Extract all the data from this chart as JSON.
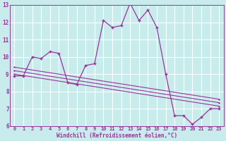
{
  "title": "",
  "xlabel": "Windchill (Refroidissement éolien,°C)",
  "bg_color": "#c8ecec",
  "line_color": "#993399",
  "grid_color": "#b0d8d8",
  "xlim": [
    -0.5,
    23.5
  ],
  "ylim": [
    6,
    13
  ],
  "xticks": [
    0,
    1,
    2,
    3,
    4,
    5,
    6,
    7,
    8,
    9,
    10,
    11,
    12,
    13,
    14,
    15,
    16,
    17,
    18,
    19,
    20,
    21,
    22,
    23
  ],
  "yticks": [
    6,
    7,
    8,
    9,
    10,
    11,
    12,
    13
  ],
  "series1_x": [
    0,
    1,
    2,
    3,
    4,
    5,
    6,
    7,
    8,
    9,
    10,
    11,
    12,
    13,
    14,
    15,
    16,
    17,
    18,
    19,
    20,
    21,
    22,
    23
  ],
  "series1_y": [
    8.9,
    8.9,
    10.0,
    9.9,
    10.3,
    10.2,
    8.5,
    8.4,
    9.5,
    9.6,
    12.1,
    11.7,
    11.8,
    13.1,
    12.1,
    12.7,
    11.7,
    9.0,
    6.6,
    6.6,
    6.1,
    6.5,
    7.0,
    7.0
  ],
  "series2_x": [
    0,
    23
  ],
  "series2_y": [
    9.4,
    7.55
  ],
  "series3_x": [
    0,
    23
  ],
  "series3_y": [
    9.2,
    7.35
  ],
  "series4_x": [
    0,
    23
  ],
  "series4_y": [
    9.0,
    7.15
  ]
}
